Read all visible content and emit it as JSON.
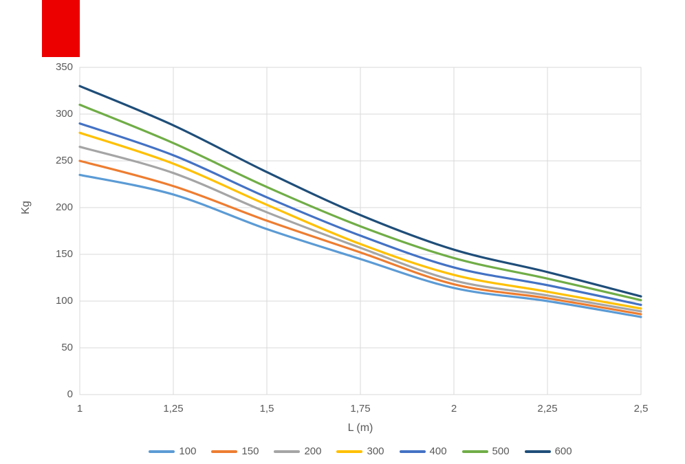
{
  "decoration": {
    "red_rect_color": "#ED0000"
  },
  "chart_data": {
    "type": "line",
    "title": "",
    "xlabel": "L (m)",
    "ylabel": "Kg",
    "xlim": [
      1,
      2.5
    ],
    "ylim": [
      0,
      350
    ],
    "grid": true,
    "legend_position": "bottom",
    "x": [
      1,
      1.25,
      1.5,
      1.75,
      2,
      2.25,
      2.5
    ],
    "x_tick_labels": [
      "1",
      "1,25",
      "1,5",
      "1,75",
      "2",
      "2,25",
      "2,5"
    ],
    "y_ticks": [
      0,
      50,
      100,
      150,
      200,
      250,
      300,
      350
    ],
    "y_tick_labels": [
      "0",
      "50",
      "100",
      "150",
      "200",
      "250",
      "300",
      "350"
    ],
    "axis_color": "#D9D9D9",
    "label_color": "#595959",
    "series": [
      {
        "name": "100",
        "color": "#5B9BD5",
        "values": [
          235,
          214,
          177,
          145,
          114,
          100,
          83
        ]
      },
      {
        "name": "150",
        "color": "#ED7D31",
        "values": [
          250,
          223,
          186,
          152,
          118,
          103,
          86
        ]
      },
      {
        "name": "200",
        "color": "#A5A5A5",
        "values": [
          265,
          237,
          195,
          157,
          122,
          106,
          89
        ]
      },
      {
        "name": "300",
        "color": "#FFC000",
        "values": [
          280,
          247,
          203,
          161,
          128,
          110,
          92
        ]
      },
      {
        "name": "400",
        "color": "#4472C4",
        "values": [
          290,
          256,
          211,
          170,
          136,
          117,
          96
        ]
      },
      {
        "name": "500",
        "color": "#70AD47",
        "values": [
          310,
          269,
          222,
          180,
          146,
          124,
          101
        ]
      },
      {
        "name": "600",
        "color": "#1F4E79",
        "values": [
          330,
          288,
          238,
          192,
          155,
          131,
          105
        ]
      }
    ]
  }
}
